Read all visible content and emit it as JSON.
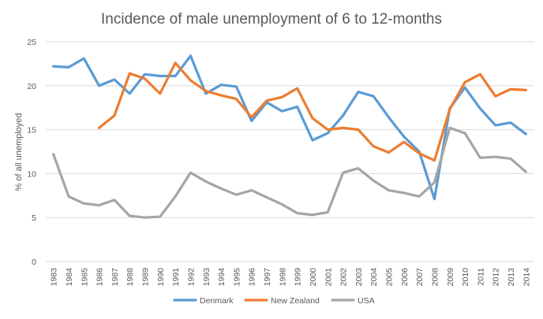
{
  "chart_data": {
    "type": "line",
    "title": "Incidence of male unemployment of 6 to 12-months",
    "xlabel": "",
    "ylabel": "% of all unemployed",
    "ylim": [
      0,
      25
    ],
    "yticks": [
      0,
      5,
      10,
      15,
      20,
      25
    ],
    "grid": true,
    "legend_position": "bottom",
    "categories": [
      "1983",
      "1984",
      "1985",
      "1986",
      "1987",
      "1988",
      "1989",
      "1990",
      "1991",
      "1992",
      "1993",
      "1994",
      "1995",
      "1996",
      "1997",
      "1998",
      "1999",
      "2000",
      "2001",
      "2002",
      "2003",
      "2004",
      "2005",
      "2006",
      "2007",
      "2008",
      "2009",
      "2010",
      "2011",
      "2012",
      "2013",
      "2014"
    ],
    "series": [
      {
        "name": "Denmark",
        "color": "#5B9BD5",
        "values": [
          22.2,
          22.1,
          23.1,
          20.0,
          20.7,
          19.1,
          21.3,
          21.1,
          21.1,
          23.4,
          19.1,
          20.1,
          19.9,
          16.0,
          18.1,
          17.1,
          17.6,
          13.8,
          14.6,
          16.6,
          19.3,
          18.8,
          16.4,
          14.2,
          12.5,
          7.1,
          17.4,
          19.8,
          17.4,
          15.5,
          15.8,
          14.5
        ]
      },
      {
        "name": "New Zealand",
        "color": "#ED7D31",
        "values": [
          null,
          null,
          null,
          15.2,
          16.6,
          21.4,
          20.8,
          19.1,
          22.6,
          20.6,
          19.4,
          18.9,
          18.5,
          16.4,
          18.3,
          18.7,
          19.7,
          16.3,
          15.0,
          15.2,
          15.0,
          13.1,
          12.4,
          13.6,
          12.3,
          11.5,
          17.3,
          20.4,
          21.3,
          18.8,
          19.6,
          19.5
        ]
      },
      {
        "name": "USA",
        "color": "#A5A5A5",
        "values": [
          12.2,
          7.4,
          6.6,
          6.4,
          7.0,
          5.2,
          5.0,
          5.1,
          7.4,
          10.1,
          9.1,
          8.3,
          7.6,
          8.1,
          7.3,
          6.5,
          5.5,
          5.3,
          5.6,
          10.1,
          10.6,
          9.2,
          8.1,
          7.8,
          7.4,
          9.0,
          15.2,
          14.6,
          11.8,
          11.9,
          11.7,
          10.2
        ]
      }
    ]
  }
}
